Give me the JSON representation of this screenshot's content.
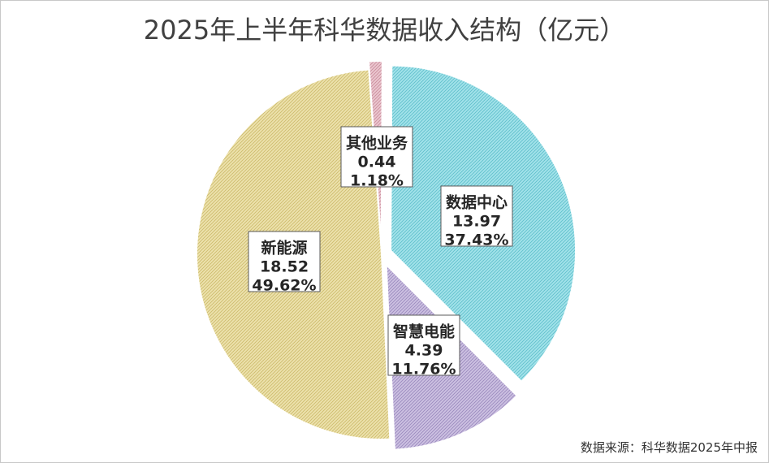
{
  "chart_data": {
    "type": "pie",
    "title": "2025年上半年科华数据收入结构（亿元）",
    "unit": "亿元",
    "slices": [
      {
        "name": "数据中心",
        "value": 13.97,
        "percent": "37.43%",
        "color": "#7fd6e0"
      },
      {
        "name": "智慧电能",
        "value": 4.39,
        "percent": "11.76%",
        "color": "#b7a7d2"
      },
      {
        "name": "新能源",
        "value": 18.52,
        "percent": "49.62%",
        "color": "#e3d48e"
      },
      {
        "name": "其他业务",
        "value": 0.44,
        "percent": "1.18%",
        "color": "#e0aab8"
      }
    ],
    "value_labels": [
      "13.97",
      "4.39",
      "18.52",
      "0.44"
    ],
    "source": "数据来源：科华数据2025年中报"
  }
}
